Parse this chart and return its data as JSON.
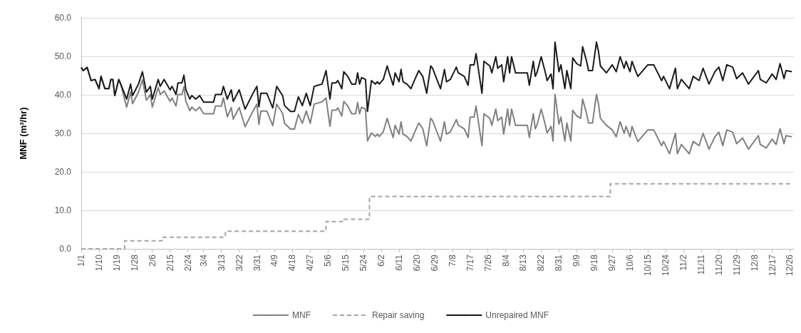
{
  "chart_data": {
    "type": "line",
    "ylabel": "MNF (m³/hr)",
    "x": [
      "--01-01",
      "--01-02",
      "--01-04",
      "--01-06",
      "--01-08",
      "--01-10",
      "--01-11",
      "--01-13",
      "--01-15",
      "--01-16",
      "--01-17",
      "--01-18",
      "--01-20",
      "--01-21",
      "--01-24",
      "--01-26",
      "--01-27",
      "--01-30",
      "--02-01",
      "--02-03",
      "--02-05",
      "--02-06",
      "--02-09",
      "--02-10",
      "--02-12",
      "--02-15",
      "--02-16",
      "--02-18",
      "--02-19",
      "--02-21",
      "--02-22",
      "--02-23",
      "--02-25",
      "--02-26",
      "--02-28",
      "--03-02",
      "--03-04",
      "--03-07",
      "--03-09",
      "--03-10",
      "--03-13",
      "--03-14",
      "--03-16",
      "--03-18",
      "--03-19",
      "--03-22",
      "--03-25",
      "--03-29",
      "--03-31",
      "--04-01",
      "--04-02",
      "--04-05",
      "--04-08",
      "--04-10",
      "--04-13",
      "--04-14",
      "--04-17",
      "--04-19",
      "--04-21",
      "--04-23",
      "--04-25",
      "--04-27",
      "--04-29",
      "--05-01",
      "--05-03",
      "--05-05",
      "--05-07",
      "--05-08",
      "--05-10",
      "--05-11",
      "--05-13",
      "--05-14",
      "--05-16",
      "--05-18",
      "--05-20",
      "--05-21",
      "--05-22",
      "--05-23",
      "--05-25",
      "--05-26",
      "--05-28",
      "--05-30",
      "--05-31",
      "--06-01",
      "--06-03",
      "--06-05",
      "--06-06",
      "--06-08",
      "--06-09",
      "--06-11",
      "--06-12",
      "--06-13",
      "--06-15",
      "--06-17",
      "--06-19",
      "--06-21",
      "--06-23",
      "--06-25",
      "--06-27",
      "--06-28",
      "--06-30",
      "--07-02",
      "--07-04",
      "--07-05",
      "--07-07",
      "--07-10",
      "--07-11",
      "--07-14",
      "--07-16",
      "--07-17",
      "--07-19",
      "--07-20",
      "--07-23",
      "--07-24",
      "--07-27",
      "--07-28",
      "--07-30",
      "--07-31",
      "--08-02",
      "--08-03",
      "--08-05",
      "--08-06",
      "--08-07",
      "--08-09",
      "--08-15",
      "--08-16",
      "--08-18",
      "--08-19",
      "--08-20",
      "--08-22",
      "--08-24",
      "--08-25",
      "--08-27",
      "--08-28",
      "--08-29",
      "--08-31",
      "--09-01",
      "--09-03",
      "--09-04",
      "--09-06",
      "--09-07",
      "--09-09",
      "--09-11",
      "--09-12",
      "--09-14",
      "--09-15",
      "--09-17",
      "--09-19",
      "--09-20",
      "--09-21",
      "--09-24",
      "--09-27",
      "--09-29",
      "--10-01",
      "--10-03",
      "--10-04",
      "--10-06",
      "--10-07",
      "--10-09",
      "--10-10",
      "--10-12",
      "--10-15",
      "--10-18",
      "--10-22",
      "--10-23",
      "--10-26",
      "--10-29",
      "--10-30",
      "--11-01",
      "--11-03",
      "--11-05",
      "--11-07",
      "--11-10",
      "--11-12",
      "--11-15",
      "--11-18",
      "--11-20",
      "--11-22",
      "--11-24",
      "--11-27",
      "--11-29",
      "--12-02",
      "--12-05",
      "--12-10",
      "--12-11",
      "--12-14",
      "--12-17",
      "--12-19",
      "--12-21",
      "--12-23",
      "--12-24",
      "--12-27"
    ],
    "series": [
      {
        "name": "MNF",
        "color": "#808080",
        "values": [
          47.1,
          46.3,
          47.1,
          43.7,
          44.0,
          41.6,
          44.8,
          41.6,
          41.6,
          44.0,
          44.0,
          39.8,
          44.0,
          42.8,
          36.8,
          40.7,
          37.7,
          40.7,
          43.9,
          38.6,
          40.1,
          36.8,
          41.9,
          40.1,
          41.0,
          38.3,
          39.2,
          37.1,
          40.1,
          40.1,
          42.1,
          38.3,
          35.9,
          36.8,
          35.9,
          36.8,
          35.1,
          35.1,
          35.1,
          37.1,
          37.1,
          39.2,
          34.3,
          36.7,
          33.7,
          36.7,
          31.7,
          35.8,
          37.6,
          32.3,
          35.8,
          35.8,
          32.0,
          37.6,
          35.2,
          32.6,
          31.1,
          31.1,
          34.9,
          32.6,
          35.8,
          32.6,
          37.6,
          37.9,
          38.2,
          39.2,
          31.8,
          36.0,
          36.0,
          36.6,
          34.5,
          38.3,
          37.1,
          35.1,
          35.1,
          38.0,
          35.1,
          36.8,
          36.3,
          28.0,
          30.1,
          29.2,
          29.8,
          29.2,
          30.4,
          33.9,
          32.1,
          28.9,
          32.1,
          29.8,
          33.0,
          29.8,
          29.2,
          28.0,
          30.4,
          32.7,
          31.2,
          26.8,
          33.9,
          33.3,
          30.6,
          28.0,
          33.0,
          29.8,
          30.4,
          33.6,
          32.1,
          31.2,
          28.9,
          34.2,
          34.2,
          37.1,
          26.8,
          35.1,
          33.9,
          32.1,
          36.3,
          33.3,
          34.2,
          29.8,
          36.3,
          32.1,
          36.3,
          32.1,
          32.1,
          28.9,
          35.1,
          31.2,
          32.4,
          36.3,
          32.4,
          30.1,
          31.8,
          28.0,
          40.1,
          32.4,
          34.2,
          28.0,
          32.7,
          28.0,
          36.0,
          34.5,
          33.9,
          38.9,
          35.1,
          32.7,
          32.7,
          40.1,
          37.7,
          33.9,
          32.1,
          30.9,
          29.1,
          33.0,
          30.0,
          31.8,
          29.1,
          31.8,
          29.1,
          27.9,
          29.1,
          30.9,
          30.9,
          26.8,
          27.9,
          24.7,
          30.0,
          24.7,
          27.1,
          25.9,
          24.7,
          27.9,
          26.8,
          30.0,
          25.9,
          29.1,
          30.3,
          26.8,
          30.9,
          30.3,
          27.3,
          28.8,
          25.9,
          29.4,
          27.1,
          26.2,
          28.5,
          27.1,
          31.2,
          27.3,
          29.4,
          29.1
        ]
      },
      {
        "name": "Repair saving",
        "color": "#a6a6a6",
        "type": "step",
        "line_style": "dashed",
        "x": [
          "--01-01",
          "--01-23",
          "--02-11",
          "--03-15",
          "--05-05",
          "--05-14",
          "--05-27",
          "--09-26",
          "--12-27"
        ],
        "values": [
          0.0,
          2.1,
          3.0,
          4.6,
          7.1,
          7.7,
          13.6,
          16.9,
          16.9
        ]
      },
      {
        "name": "Unrepaired MNF",
        "color": "#1a1a1a",
        "values": [
          47.1,
          46.3,
          47.1,
          43.7,
          44.0,
          41.6,
          44.8,
          41.6,
          41.6,
          44.0,
          44.0,
          39.8,
          44.0,
          42.8,
          38.9,
          42.8,
          39.8,
          42.8,
          46.0,
          40.7,
          42.2,
          38.9,
          44.0,
          42.2,
          44.0,
          41.3,
          42.2,
          40.1,
          43.1,
          43.1,
          45.1,
          41.3,
          38.9,
          39.8,
          38.9,
          39.8,
          38.1,
          38.1,
          38.1,
          40.1,
          40.1,
          42.2,
          38.9,
          41.3,
          38.3,
          41.3,
          36.3,
          40.4,
          42.2,
          36.9,
          40.4,
          40.4,
          36.6,
          42.2,
          39.8,
          37.2,
          35.7,
          35.7,
          39.5,
          37.2,
          40.4,
          37.2,
          42.2,
          42.5,
          42.8,
          46.3,
          38.9,
          43.1,
          43.1,
          43.7,
          41.6,
          46.0,
          44.8,
          42.8,
          42.8,
          45.7,
          42.8,
          44.5,
          44.0,
          35.7,
          43.7,
          42.8,
          43.4,
          42.8,
          44.0,
          47.5,
          45.7,
          42.5,
          45.7,
          43.4,
          46.6,
          43.4,
          42.8,
          41.6,
          44.0,
          46.3,
          44.8,
          40.4,
          47.5,
          46.9,
          44.2,
          41.6,
          46.6,
          43.4,
          44.0,
          47.2,
          45.7,
          44.8,
          42.5,
          47.8,
          47.8,
          50.7,
          40.4,
          48.7,
          47.5,
          45.7,
          49.9,
          46.9,
          47.8,
          43.4,
          49.9,
          45.7,
          49.9,
          45.7,
          45.7,
          42.5,
          48.7,
          44.8,
          46.0,
          49.9,
          46.0,
          43.7,
          45.4,
          41.6,
          53.7,
          46.0,
          47.8,
          41.6,
          46.3,
          41.6,
          49.6,
          48.1,
          47.5,
          52.5,
          48.7,
          46.3,
          46.3,
          53.7,
          51.3,
          47.5,
          45.7,
          47.8,
          46.0,
          49.9,
          46.9,
          48.7,
          46.0,
          48.7,
          46.0,
          44.8,
          46.0,
          47.8,
          47.8,
          43.7,
          44.8,
          41.6,
          46.9,
          41.6,
          44.0,
          42.8,
          41.6,
          44.8,
          43.7,
          46.9,
          42.8,
          46.0,
          47.2,
          43.7,
          47.8,
          47.2,
          44.2,
          45.7,
          42.8,
          46.3,
          44.0,
          43.1,
          45.4,
          44.0,
          48.1,
          44.2,
          46.3,
          46.0
        ]
      }
    ],
    "xlim": [
      "--01-01",
      "--12-28"
    ],
    "xticks": [
      {
        "value": "--01-01",
        "label": "1/1"
      },
      {
        "value": "--01-10",
        "label": "1/10"
      },
      {
        "value": "--01-19",
        "label": "1/19"
      },
      {
        "value": "--01-28",
        "label": "1/28"
      },
      {
        "value": "--02-06",
        "label": "2/6"
      },
      {
        "value": "--02-15",
        "label": "2/15"
      },
      {
        "value": "--02-24",
        "label": "2/24"
      },
      {
        "value": "--03-04",
        "label": "3/4"
      },
      {
        "value": "--03-13",
        "label": "3/13"
      },
      {
        "value": "--03-22",
        "label": "3/22"
      },
      {
        "value": "--03-31",
        "label": "3/31"
      },
      {
        "value": "--04-09",
        "label": "4/9"
      },
      {
        "value": "--04-18",
        "label": "4/18"
      },
      {
        "value": "--04-27",
        "label": "4/27"
      },
      {
        "value": "--05-06",
        "label": "5/6"
      },
      {
        "value": "--05-15",
        "label": "5/15"
      },
      {
        "value": "--05-24",
        "label": "5/24"
      },
      {
        "value": "--06-02",
        "label": "6/2"
      },
      {
        "value": "--06-11",
        "label": "6/11"
      },
      {
        "value": "--06-20",
        "label": "6/20"
      },
      {
        "value": "--06-29",
        "label": "6/29"
      },
      {
        "value": "--07-08",
        "label": "7/8"
      },
      {
        "value": "--07-17",
        "label": "7/17"
      },
      {
        "value": "--07-26",
        "label": "7/26"
      },
      {
        "value": "--08-04",
        "label": "8/4"
      },
      {
        "value": "--08-13",
        "label": "8/13"
      },
      {
        "value": "--08-22",
        "label": "8/22"
      },
      {
        "value": "--08-31",
        "label": "8/31"
      },
      {
        "value": "--09-09",
        "label": "9/9"
      },
      {
        "value": "--09-18",
        "label": "9/18"
      },
      {
        "value": "--09-27",
        "label": "9/27"
      },
      {
        "value": "--10-06",
        "label": "10/6"
      },
      {
        "value": "--10-15",
        "label": "10/15"
      },
      {
        "value": "--10-24",
        "label": "10/24"
      },
      {
        "value": "--11-02",
        "label": "11/2"
      },
      {
        "value": "--11-11",
        "label": "11/11"
      },
      {
        "value": "--11-20",
        "label": "11/20"
      },
      {
        "value": "--11-29",
        "label": "11/29"
      },
      {
        "value": "--12-08",
        "label": "12/8"
      },
      {
        "value": "--12-17",
        "label": "12/17"
      },
      {
        "value": "--12-26",
        "label": "12/26"
      }
    ],
    "ylim": [
      0,
      60
    ],
    "yticks": [
      {
        "value": 0,
        "label": "0.0"
      },
      {
        "value": 10,
        "label": "10.0"
      },
      {
        "value": 20,
        "label": "20.0"
      },
      {
        "value": 30,
        "label": "30.0"
      },
      {
        "value": 40,
        "label": "40.0"
      },
      {
        "value": 50,
        "label": "50.0"
      },
      {
        "value": 60,
        "label": "60.0"
      }
    ],
    "grid": "y",
    "legend": "bottom",
    "marker": "none",
    "line_style": "solid"
  }
}
